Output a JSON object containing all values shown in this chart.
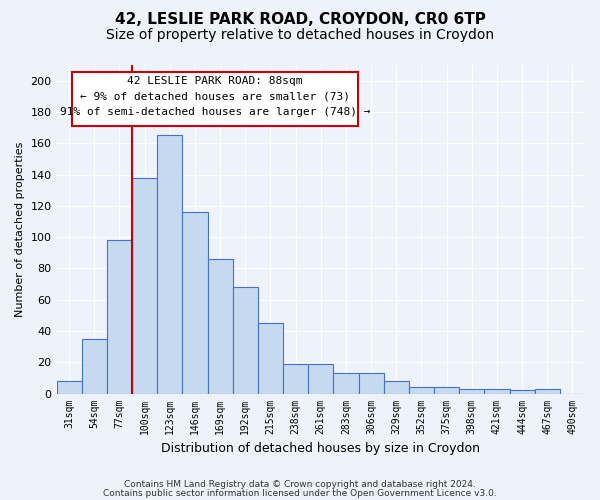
{
  "title": "42, LESLIE PARK ROAD, CROYDON, CR0 6TP",
  "subtitle": "Size of property relative to detached houses in Croydon",
  "xlabel": "Distribution of detached houses by size in Croydon",
  "ylabel": "Number of detached properties",
  "bar_color": "#c5d9f1",
  "bar_edge_color": "#4472c4",
  "vline_color": "#cc0000",
  "vline_x_index": 2,
  "categories": [
    "31sqm",
    "54sqm",
    "77sqm",
    "100sqm",
    "123sqm",
    "146sqm",
    "169sqm",
    "192sqm",
    "215sqm",
    "238sqm",
    "261sqm",
    "283sqm",
    "306sqm",
    "329sqm",
    "352sqm",
    "375sqm",
    "398sqm",
    "421sqm",
    "444sqm",
    "467sqm",
    "490sqm"
  ],
  "values": [
    8,
    35,
    98,
    138,
    165,
    116,
    86,
    68,
    45,
    19,
    19,
    13,
    13,
    8,
    4,
    4,
    3,
    3,
    2,
    3,
    0
  ],
  "ylim": [
    0,
    210
  ],
  "yticks": [
    0,
    20,
    40,
    60,
    80,
    100,
    120,
    140,
    160,
    180,
    200
  ],
  "annotation_title": "42 LESLIE PARK ROAD: 88sqm",
  "annotation_line1": "← 9% of detached houses are smaller (73)",
  "annotation_line2": "91% of semi-detached houses are larger (748) →",
  "footer1": "Contains HM Land Registry data © Crown copyright and database right 2024.",
  "footer2": "Contains public sector information licensed under the Open Government Licence v3.0.",
  "background_color": "#eef2fa",
  "grid_color": "#ffffff",
  "title_fontsize": 11,
  "subtitle_fontsize": 10
}
